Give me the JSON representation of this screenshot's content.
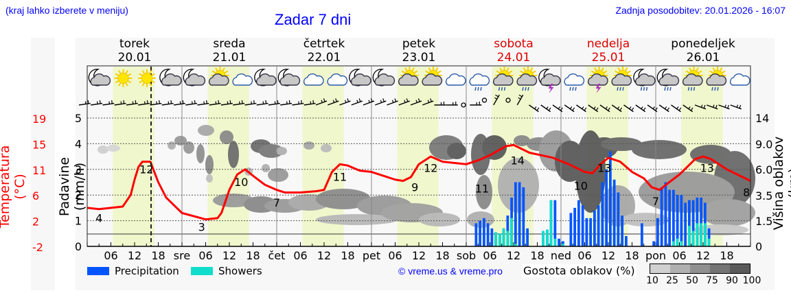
{
  "header": {
    "hint": "(kraj lahko izberete v meniju)",
    "title": "Zadar 7 dni",
    "updated": "Zadnja posodobitev: 20.01.2026 - 16:07"
  },
  "days": [
    {
      "name": "torek",
      "date": "20.01",
      "weekend": false
    },
    {
      "name": "sreda",
      "date": "21.01",
      "weekend": false
    },
    {
      "name": "četrtek",
      "date": "22.01",
      "weekend": false
    },
    {
      "name": "petek",
      "date": "23.01",
      "weekend": false
    },
    {
      "name": "sobota",
      "date": "24.01",
      "weekend": true
    },
    {
      "name": "nedelja",
      "date": "25.01",
      "weekend": true
    },
    {
      "name": "ponedeljek",
      "date": "26.01",
      "weekend": false
    }
  ],
  "axes": {
    "temp_label": "Temperatura (°C)",
    "prec_label": "Padavine (mm/h)",
    "cloud_label": "Višina oblakov (km)",
    "temp_ticks": [
      "19",
      "15",
      "11",
      "6",
      "2",
      "-2"
    ],
    "prec_ticks": [
      "0",
      "1",
      "2",
      "3",
      "4",
      "5"
    ],
    "cloud_ticks": [
      "0",
      "1.5",
      "3.5",
      "6.0",
      "9.0",
      "14"
    ],
    "x_ticks": [
      "06",
      "12",
      "18",
      "sre",
      "06",
      "12",
      "18",
      "čet",
      "06",
      "12",
      "18",
      "pet",
      "06",
      "12",
      "18",
      "sob",
      "06",
      "12",
      "18",
      "ned",
      "06",
      "12",
      "18",
      "pon",
      "06",
      "12",
      "18"
    ]
  },
  "icons": [
    "night-partly-cloudy",
    "sun",
    "sun",
    "night-partly-cloudy",
    "night-cloudy",
    "sun-cloud",
    "cloudy",
    "night-cloudy",
    "night-cloudy",
    "cloudy",
    "cloudy",
    "night-cloudy",
    "night-cloudy",
    "sun-cloud",
    "sun-cloud",
    "cloudy",
    "cloudy-rain",
    "sun-rain",
    "sun-rain",
    "night-thunder",
    "cloudy-rain",
    "sun-thunder",
    "sun-rain",
    "night-rain",
    "night-rain",
    "sun-rain",
    "sun-rain",
    "cloudy"
  ],
  "legend": {
    "precipitation": "Precipitation",
    "showers": "Showers",
    "copyright": "© vreme.us & vreme.pro",
    "cloud_density": "Gostota oblakov (%)",
    "density_scale": [
      "10",
      "25",
      "50",
      "75",
      "90",
      "100"
    ]
  },
  "colors": {
    "precipitation": "#0055ff",
    "showers": "#11ddcc",
    "temperature": "#ff0000",
    "daylight": "#f0f7cc",
    "weekend": "#dd0000"
  },
  "chart_data": {
    "type": "line",
    "title": "Zadar 7 dni",
    "xlabel": "",
    "ylabel": "Padavine (mm/h)",
    "ylim": [
      0,
      5
    ],
    "temperature_labels": [
      {
        "day": "torek",
        "time": "03",
        "value": 4
      },
      {
        "day": "torek",
        "time": "15",
        "value": 12
      },
      {
        "day": "sreda",
        "time": "03",
        "value": 3
      },
      {
        "day": "sreda",
        "time": "12",
        "value": 10
      },
      {
        "day": "četrtek",
        "time": "00",
        "value": 7
      },
      {
        "day": "četrtek",
        "time": "12",
        "value": 11
      },
      {
        "day": "petek",
        "time": "06",
        "value": 9
      },
      {
        "day": "petek",
        "time": "15",
        "value": 12
      },
      {
        "day": "sobota",
        "time": "00",
        "value": 11
      },
      {
        "day": "sobota",
        "time": "12",
        "value": 14
      },
      {
        "day": "nedelja",
        "time": "06",
        "value": 10
      },
      {
        "day": "nedelja",
        "time": "12",
        "value": 13
      },
      {
        "day": "ponedeljek",
        "time": "00",
        "value": 7
      },
      {
        "day": "ponedeljek",
        "time": "12",
        "value": 13
      },
      {
        "day": "ponedeljek",
        "time": "24",
        "value": 8
      }
    ],
    "series": [
      {
        "name": "Precipitation",
        "note": "hourly bars, sobota-ponedeljek, peak ~3.7 mm/h on nedelja 15h"
      },
      {
        "name": "Showers",
        "note": "hourly bars, max ~1.8 mm/h"
      }
    ],
    "legend_position": "bottom",
    "grid": true
  }
}
